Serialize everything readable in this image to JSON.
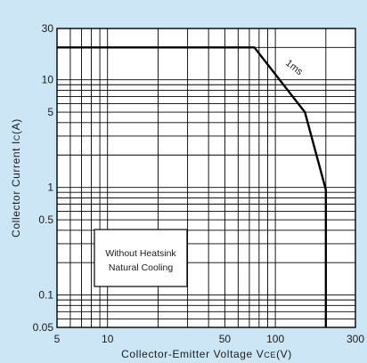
{
  "chart_data": {
    "type": "line",
    "xscale": "log",
    "yscale": "log",
    "xlim": [
      5,
      300
    ],
    "ylim": [
      0.05,
      30
    ],
    "xticks": [
      {
        "value": 5,
        "label": "5"
      },
      {
        "value": 10,
        "label": "10"
      },
      {
        "value": 50,
        "label": "50"
      },
      {
        "value": 100,
        "label": "100"
      },
      {
        "value": 300,
        "label": "300"
      }
    ],
    "yticks": [
      {
        "value": 0.05,
        "label": "0.05"
      },
      {
        "value": 0.1,
        "label": "0.1"
      },
      {
        "value": 0.5,
        "label": "0.5"
      },
      {
        "value": 1,
        "label": "1"
      },
      {
        "value": 5,
        "label": "5"
      },
      {
        "value": 10,
        "label": "10"
      },
      {
        "value": 30,
        "label": "30"
      }
    ],
    "xgrid": [
      6,
      7,
      8,
      9,
      10,
      20,
      30,
      40,
      50,
      60,
      70,
      80,
      90,
      100,
      200
    ],
    "ygrid": [
      0.06,
      0.07,
      0.08,
      0.09,
      0.1,
      0.2,
      0.3,
      0.4,
      0.5,
      0.6,
      0.7,
      0.8,
      0.9,
      1,
      2,
      3,
      4,
      5,
      6,
      7,
      8,
      9,
      10,
      20
    ],
    "xlabel": {
      "main": "Collector-Emitter Voltage V",
      "sub": "CE",
      "tail": "(V)"
    },
    "ylabel": {
      "main": "Collector Current I",
      "sub": "C",
      "tail": "(A)"
    },
    "grid": true,
    "series": [
      {
        "name": "1ms",
        "x": [
          5,
          75,
          150,
          200,
          200
        ],
        "y": [
          20,
          20,
          5,
          0.95,
          0.05
        ]
      }
    ],
    "annotations": [
      "Without Heatsink",
      "Natural Cooling"
    ],
    "colors": {
      "background": "#cde6f5",
      "plot": "#ffffff",
      "line": "#000000"
    }
  }
}
